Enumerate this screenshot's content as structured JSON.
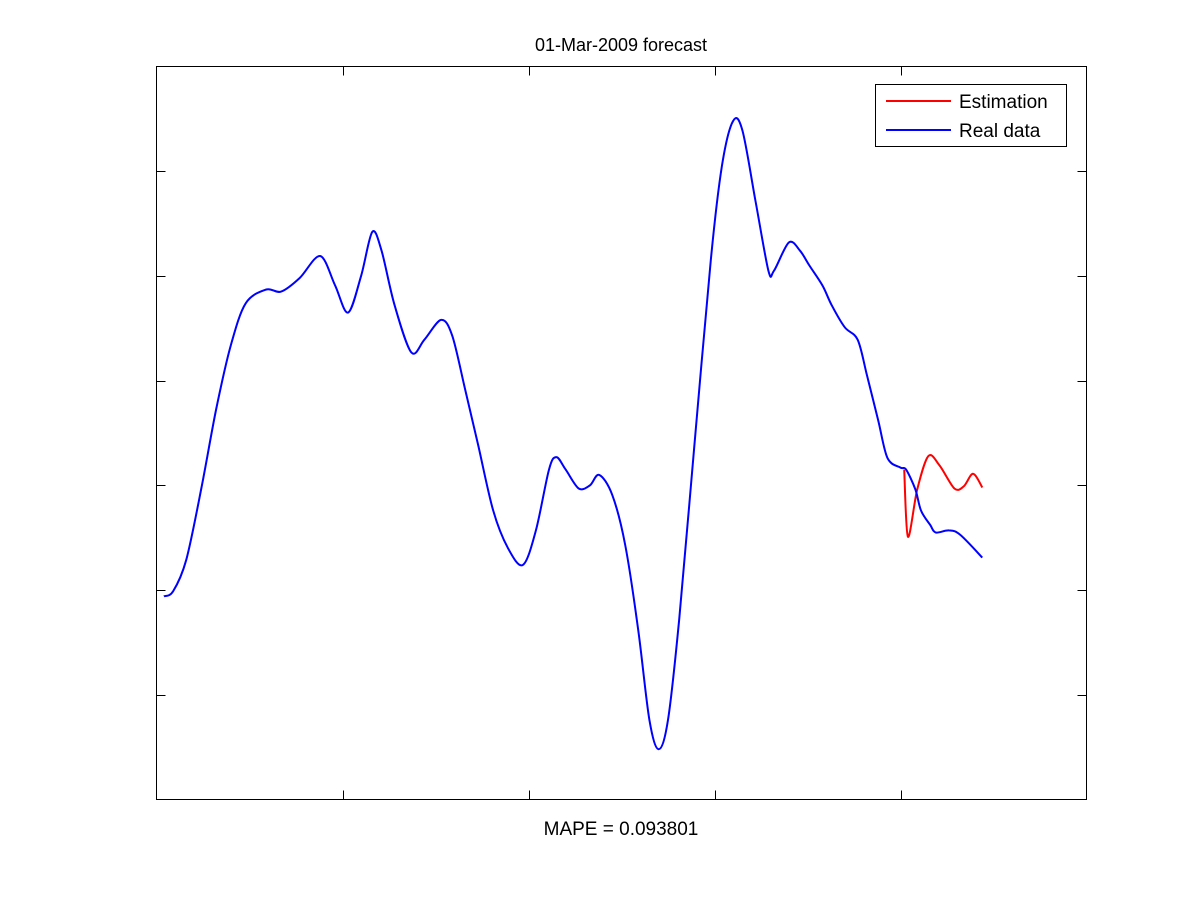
{
  "chart_data": {
    "type": "line",
    "title": "01-Mar-2009 forecast",
    "xlabel": "MAPE = 0.093801",
    "ylabel": "",
    "xlim": [
      0,
      5
    ],
    "ylim": [
      0,
      7
    ],
    "xticks": [
      1,
      2,
      3,
      4
    ],
    "yticks": [
      1,
      2,
      3,
      4,
      5,
      6
    ],
    "tick_labels_shown": false,
    "grid": false,
    "legend_position": "top-right",
    "series": [
      {
        "name": "Estimation",
        "color": "#ff0000",
        "x": [
          4.02,
          4.04,
          4.09,
          4.15,
          4.21,
          4.29,
          4.34,
          4.39,
          4.44
        ],
        "y": [
          3.15,
          2.51,
          2.96,
          3.28,
          3.19,
          2.97,
          2.99,
          3.11,
          2.98
        ]
      },
      {
        "name": "Real data",
        "color": "#0000ff",
        "x": [
          0.04,
          0.09,
          0.16,
          0.24,
          0.32,
          0.4,
          0.48,
          0.59,
          0.67,
          0.77,
          0.88,
          0.96,
          1.03,
          1.1,
          1.16,
          1.21,
          1.28,
          1.37,
          1.44,
          1.53,
          1.59,
          1.66,
          1.73,
          1.81,
          1.89,
          1.97,
          2.04,
          2.11,
          2.15,
          2.2,
          2.27,
          2.33,
          2.38,
          2.45,
          2.52,
          2.59,
          2.65,
          2.7,
          2.75,
          2.81,
          2.89,
          2.98,
          3.04,
          3.1,
          3.15,
          3.22,
          3.29,
          3.32,
          3.4,
          3.46,
          3.51,
          3.58,
          3.63,
          3.7,
          3.77,
          3.82,
          3.88,
          3.93,
          4.0,
          4.03,
          4.08,
          4.11,
          4.16,
          4.19,
          4.26,
          4.32,
          4.44
        ],
        "y": [
          1.94,
          1.99,
          2.29,
          2.96,
          3.72,
          4.34,
          4.74,
          4.87,
          4.85,
          4.98,
          5.19,
          4.91,
          4.65,
          5.0,
          5.42,
          5.24,
          4.72,
          4.27,
          4.39,
          4.58,
          4.43,
          3.91,
          3.38,
          2.76,
          2.4,
          2.24,
          2.57,
          3.15,
          3.27,
          3.15,
          2.97,
          3.0,
          3.1,
          2.91,
          2.43,
          1.62,
          0.76,
          0.48,
          0.76,
          1.72,
          3.34,
          5.15,
          6.05,
          6.48,
          6.39,
          5.72,
          5.05,
          5.05,
          5.32,
          5.24,
          5.1,
          4.91,
          4.72,
          4.51,
          4.39,
          4.05,
          3.62,
          3.26,
          3.17,
          3.15,
          2.96,
          2.76,
          2.62,
          2.55,
          2.57,
          2.53,
          2.31
        ]
      }
    ]
  }
}
